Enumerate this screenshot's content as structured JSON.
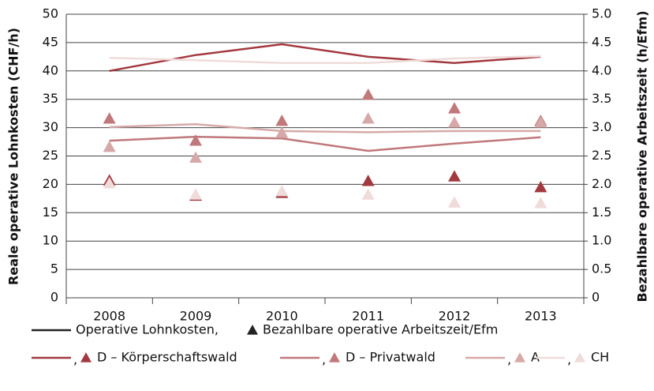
{
  "chart_data": {
    "type": "line",
    "y_label": "Reale operative Lohnkosten (CHF/h)",
    "y2_label": "Bezahlbare operative Arbeitszeit (h/Efm)",
    "categories": [
      "2008",
      "2009",
      "2010",
      "2011",
      "2012",
      "2013"
    ],
    "ylim": [
      0,
      50
    ],
    "yticks": [
      0,
      5,
      10,
      15,
      20,
      25,
      30,
      35,
      40,
      45,
      50
    ],
    "y2lim": [
      0,
      5
    ],
    "y2ticks": [
      0,
      0.5,
      {
        "value": 1,
        "label": "1.0"
      },
      1.5,
      {
        "value": 2,
        "label": "2.0"
      },
      2.5,
      {
        "value": 3,
        "label": "3.0"
      },
      3.5,
      {
        "value": 4,
        "label": "4.0"
      },
      4.5,
      {
        "value": 5,
        "label": "5.0"
      }
    ],
    "grid": true,
    "legend_line_label": "Operative Lohnkosten,",
    "legend_marker_label": "Bezahlbare operative Arbeitszeit/Efm",
    "legend_separator": ",",
    "legend_key_color": "#222222",
    "series": [
      {
        "name": "D – Körperschaftswald",
        "color": "#a2393f",
        "values": [
          40.0,
          42.8,
          44.7,
          42.5,
          41.4,
          42.5
        ]
      },
      {
        "name": "D – Privatwald",
        "color": "#c0787a",
        "values": [
          27.7,
          28.4,
          28.1,
          25.9,
          27.2,
          28.3
        ]
      },
      {
        "name": "A",
        "color": "#d6a9a8",
        "values": [
          30.1,
          30.6,
          29.4,
          29.2,
          29.4,
          29.4
        ]
      },
      {
        "name": "CH",
        "color": "#efdcda",
        "values": [
          42.3,
          41.9,
          41.4,
          41.4,
          42.2,
          42.6
        ]
      },
      {
        "color": "#a2393f",
        "axis": "y2",
        "marker": "triangle",
        "values": [
          2.07,
          1.8,
          1.85,
          2.06,
          2.14,
          1.95
        ]
      },
      {
        "color": "#c0787a",
        "axis": "y2",
        "marker": "triangle",
        "values": [
          3.16,
          2.77,
          3.12,
          3.58,
          3.34,
          3.12
        ]
      },
      {
        "color": "#d6a9a8",
        "axis": "y2",
        "marker": "triangle",
        "values": [
          2.66,
          2.47,
          2.91,
          3.16,
          3.09,
          3.09
        ]
      },
      {
        "color": "#efdcda",
        "axis": "y2",
        "marker": "triangle",
        "values": [
          2.02,
          1.82,
          1.88,
          1.82,
          1.68,
          1.67
        ]
      }
    ]
  }
}
